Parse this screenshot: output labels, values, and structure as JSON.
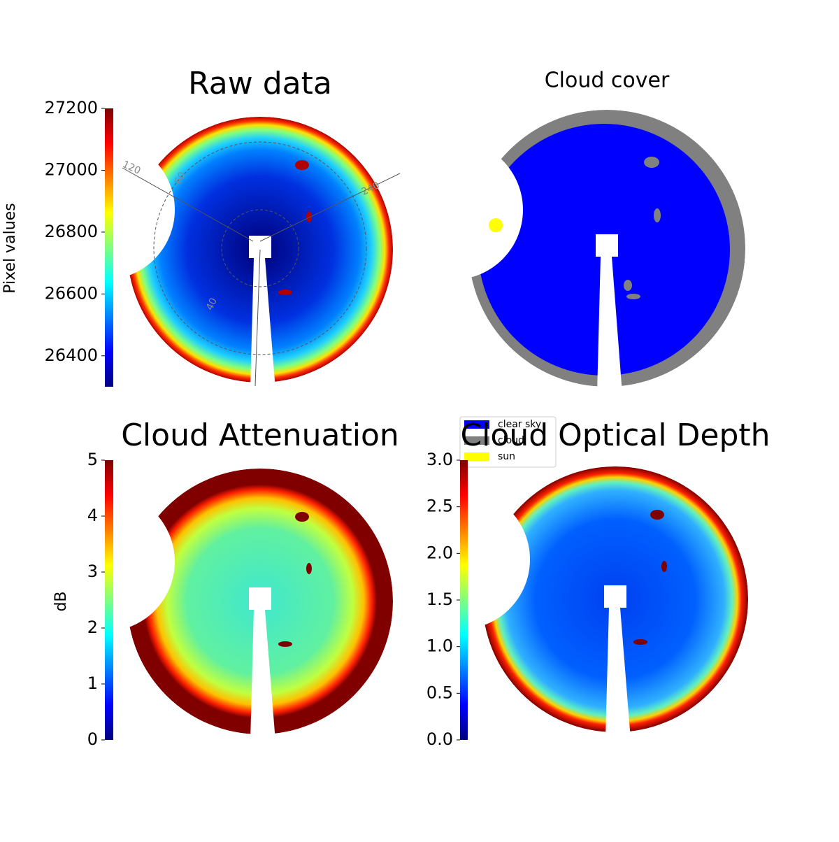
{
  "chart_data": [
    {
      "type": "image",
      "title": "Raw data",
      "colormap": "jet",
      "colorbar_label": "Pixel values",
      "clim": [
        26300,
        27200
      ],
      "cticks": [
        26400,
        26600,
        26800,
        27000,
        27200
      ],
      "annotations": [
        "120",
        "60",
        "240",
        "40"
      ]
    },
    {
      "type": "image",
      "title": "Cloud cover",
      "legend_entries": [
        {
          "name": "clear sky",
          "color": "#0000ff"
        },
        {
          "name": "cloud",
          "color": "#808080"
        },
        {
          "name": "sun",
          "color": "#ffff00"
        }
      ]
    },
    {
      "type": "image",
      "title": "Cloud Attenuation",
      "colormap": "jet",
      "colorbar_label": "dB",
      "clim": [
        0,
        5
      ],
      "cticks": [
        0,
        1,
        2,
        3,
        4,
        5
      ]
    },
    {
      "type": "image",
      "title": "Cloud Optical Depth",
      "colormap": "jet",
      "clim": [
        0,
        3
      ],
      "cticks": [
        {
          "value": 0,
          "label": "0.0"
        },
        0.5,
        {
          "value": 1,
          "label": "1.0"
        },
        1.5,
        {
          "value": 2,
          "label": "2.0"
        },
        2.5,
        {
          "value": 3,
          "label": "3.0"
        }
      ]
    }
  ]
}
